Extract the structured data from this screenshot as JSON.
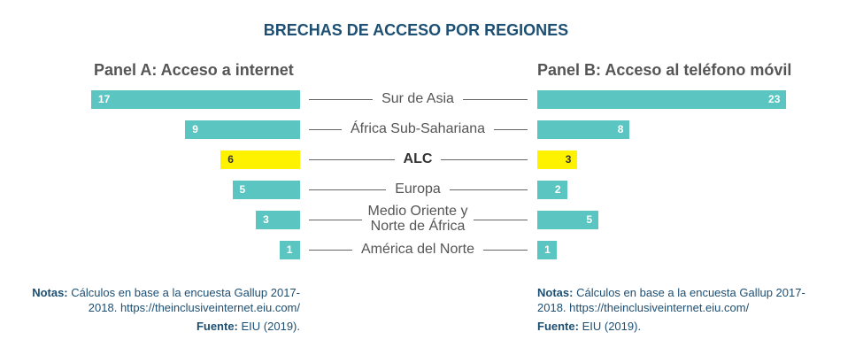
{
  "chart_data": {
    "type": "bar",
    "title": "BRECHAS DE ACCESO POR REGIONES",
    "categories": [
      "Sur de Asia",
      "África Sub-Sahariana",
      "ALC",
      "Europa",
      "Medio Oriente y Norte de África",
      "América del Norte"
    ],
    "category_lines": [
      [
        "Sur de Asia"
      ],
      [
        "África Sub-Sahariana"
      ],
      [
        "ALC"
      ],
      [
        "Europa"
      ],
      [
        "Medio Oriente y",
        "Norte de África"
      ],
      [
        "América del Norte"
      ]
    ],
    "highlight": "ALC",
    "series": [
      {
        "name": "Panel A: Acceso a internet",
        "values": [
          17,
          9,
          6,
          5,
          3,
          1
        ]
      },
      {
        "name": "Panel B: Acceso al teléfono móvil",
        "values": [
          23,
          8,
          3,
          2,
          5,
          1
        ]
      }
    ],
    "colors": {
      "bar": "#5bc5c2",
      "highlight": "#fff200",
      "title": "#1d4f73"
    }
  },
  "notes": {
    "left": {
      "notas_label": "Notas:",
      "notas_text": "Cálculos en base a la encuesta Gallup 2017-",
      "notas_text2": "2018. https://theinclusiveinternet.eiu.com/",
      "fuente_label": "Fuente:",
      "fuente_text": "EIU (2019)."
    },
    "right": {
      "notas_label": "Notas:",
      "notas_text": "Cálculos en base a la encuesta Gallup 2017-",
      "notas_text2": "2018. https://theinclusiveinternet.eiu.com/",
      "fuente_label": "Fuente:",
      "fuente_text": "EIU (2019)."
    }
  }
}
